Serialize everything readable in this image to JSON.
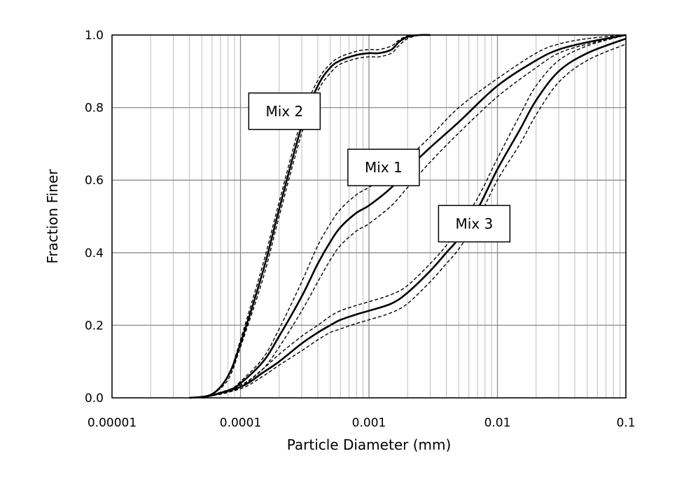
{
  "chart_data": {
    "type": "line",
    "title": "",
    "xlabel": "Particle Diameter (mm)",
    "ylabel": "Fraction Finer",
    "x_scale": "log",
    "xlim": [
      1e-05,
      0.1
    ],
    "ylim": [
      0,
      1
    ],
    "grid": true,
    "legend": "none",
    "x_ticks": [
      "0.00001",
      "0.0001",
      "0.001",
      "0.01",
      "0.1"
    ],
    "y_ticks": [
      "0.0",
      "0.2",
      "0.4",
      "0.6",
      "0.8",
      "1.0"
    ],
    "annotations": [
      {
        "text": "Mix 2",
        "x": 0.00022,
        "y": 0.79
      },
      {
        "text": "Mix 1",
        "x": 0.0013,
        "y": 0.635
      },
      {
        "text": "Mix 3",
        "x": 0.0066,
        "y": 0.48
      }
    ],
    "series": [
      {
        "group": "Mix 2",
        "style": "solid",
        "x": [
          4e-05,
          6e-05,
          8e-05,
          0.0001,
          0.00015,
          0.0002,
          0.0003,
          0.0004,
          0.0005,
          0.0006,
          0.0008,
          0.001,
          0.0012,
          0.0015,
          0.0017,
          0.002,
          0.0025,
          0.003
        ],
        "y": [
          0,
          0.01,
          0.06,
          0.15,
          0.35,
          0.52,
          0.75,
          0.86,
          0.91,
          0.93,
          0.945,
          0.95,
          0.95,
          0.96,
          0.98,
          0.995,
          1.0,
          1.0
        ]
      },
      {
        "group": "Mix 2",
        "style": "dashed",
        "x": [
          5e-05,
          6e-05,
          8e-05,
          0.0001,
          0.00015,
          0.0002,
          0.0003,
          0.0004,
          0.0005,
          0.0006,
          0.0008,
          0.001,
          0.0012,
          0.0015,
          0.0017,
          0.002,
          0.0025,
          0.003
        ],
        "y": [
          0,
          0.01,
          0.06,
          0.16,
          0.37,
          0.54,
          0.77,
          0.875,
          0.92,
          0.94,
          0.955,
          0.96,
          0.96,
          0.97,
          0.985,
          0.998,
          1.0,
          1.0
        ]
      },
      {
        "group": "Mix 2",
        "style": "dashed",
        "x": [
          5e-05,
          6e-05,
          8e-05,
          0.0001,
          0.00015,
          0.0002,
          0.0003,
          0.0004,
          0.0005,
          0.0006,
          0.0008,
          0.001,
          0.0012,
          0.0015,
          0.0017,
          0.002,
          0.0025,
          0.003
        ],
        "y": [
          0,
          0.01,
          0.05,
          0.14,
          0.33,
          0.5,
          0.73,
          0.845,
          0.895,
          0.92,
          0.935,
          0.94,
          0.94,
          0.95,
          0.97,
          0.99,
          1.0,
          1.0
        ]
      },
      {
        "group": "Mix 1",
        "style": "solid",
        "x": [
          5e-05,
          8e-05,
          0.0001,
          0.00015,
          0.0002,
          0.0003,
          0.0004,
          0.0005,
          0.0006,
          0.0008,
          0.001,
          0.0015,
          0.002,
          0.003,
          0.005,
          0.01,
          0.02,
          0.03,
          0.05,
          0.1
        ],
        "y": [
          0,
          0.02,
          0.04,
          0.1,
          0.17,
          0.28,
          0.37,
          0.43,
          0.47,
          0.51,
          0.53,
          0.58,
          0.63,
          0.69,
          0.76,
          0.86,
          0.93,
          0.96,
          0.98,
          1.0
        ]
      },
      {
        "group": "Mix 1",
        "style": "dashed",
        "x": [
          5e-05,
          8e-05,
          0.0001,
          0.00015,
          0.0002,
          0.0003,
          0.0004,
          0.0005,
          0.0006,
          0.0008,
          0.001,
          0.0015,
          0.002,
          0.003,
          0.005,
          0.01,
          0.02,
          0.03,
          0.05,
          0.1
        ],
        "y": [
          0,
          0.02,
          0.045,
          0.11,
          0.19,
          0.32,
          0.42,
          0.48,
          0.52,
          0.56,
          0.58,
          0.62,
          0.66,
          0.72,
          0.8,
          0.88,
          0.95,
          0.975,
          0.99,
          1.0
        ]
      },
      {
        "group": "Mix 1",
        "style": "dashed",
        "x": [
          5e-05,
          8e-05,
          0.0001,
          0.00015,
          0.0002,
          0.0003,
          0.0004,
          0.0005,
          0.0006,
          0.0008,
          0.001,
          0.0015,
          0.002,
          0.003,
          0.005,
          0.01,
          0.02,
          0.03,
          0.05,
          0.1
        ],
        "y": [
          0,
          0.015,
          0.03,
          0.08,
          0.14,
          0.24,
          0.32,
          0.38,
          0.42,
          0.46,
          0.48,
          0.53,
          0.58,
          0.65,
          0.73,
          0.83,
          0.91,
          0.95,
          0.975,
          1.0
        ]
      },
      {
        "group": "Mix 3",
        "style": "solid",
        "x": [
          5e-05,
          0.0001,
          0.00015,
          0.0002,
          0.0003,
          0.0004,
          0.0005,
          0.0006,
          0.0008,
          0.001,
          0.0015,
          0.002,
          0.003,
          0.004,
          0.005,
          0.007,
          0.01,
          0.015,
          0.02,
          0.03,
          0.05,
          0.1
        ],
        "y": [
          0,
          0.03,
          0.07,
          0.1,
          0.15,
          0.18,
          0.2,
          0.215,
          0.23,
          0.24,
          0.26,
          0.29,
          0.35,
          0.4,
          0.44,
          0.52,
          0.63,
          0.74,
          0.82,
          0.9,
          0.95,
          0.99
        ]
      },
      {
        "group": "Mix 3",
        "style": "dashed",
        "x": [
          5e-05,
          0.0001,
          0.00015,
          0.0002,
          0.0003,
          0.0004,
          0.0005,
          0.0006,
          0.0008,
          0.001,
          0.0015,
          0.002,
          0.003,
          0.004,
          0.005,
          0.007,
          0.01,
          0.015,
          0.02,
          0.03,
          0.05,
          0.1
        ],
        "y": [
          0,
          0.035,
          0.08,
          0.12,
          0.17,
          0.2,
          0.225,
          0.24,
          0.255,
          0.265,
          0.285,
          0.31,
          0.37,
          0.42,
          0.47,
          0.55,
          0.66,
          0.78,
          0.86,
          0.93,
          0.97,
          1.0
        ]
      },
      {
        "group": "Mix 3",
        "style": "dashed",
        "x": [
          5e-05,
          0.0001,
          0.00015,
          0.0002,
          0.0003,
          0.0004,
          0.0005,
          0.0006,
          0.0008,
          0.001,
          0.0015,
          0.002,
          0.003,
          0.004,
          0.005,
          0.007,
          0.01,
          0.015,
          0.02,
          0.03,
          0.05,
          0.1
        ],
        "y": [
          0,
          0.025,
          0.06,
          0.09,
          0.13,
          0.16,
          0.18,
          0.19,
          0.205,
          0.215,
          0.235,
          0.26,
          0.32,
          0.37,
          0.41,
          0.49,
          0.6,
          0.7,
          0.78,
          0.87,
          0.93,
          0.975
        ]
      }
    ]
  }
}
